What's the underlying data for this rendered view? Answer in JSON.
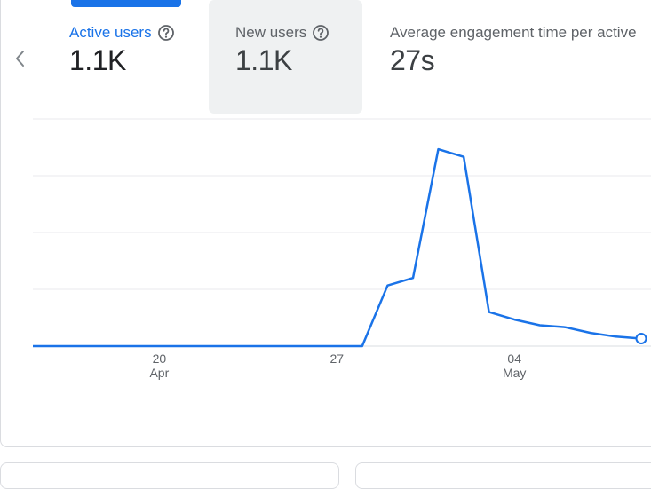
{
  "tabs": [
    {
      "label": "Active users",
      "value": "1.1K",
      "active": true
    },
    {
      "label": "New users",
      "value": "1.1K",
      "active": false
    },
    {
      "label": "Average engagement time per active",
      "value": "27s",
      "active": false
    }
  ],
  "icons": {
    "help": "help-circle-icon",
    "prev": "chevron-left-icon"
  },
  "colors": {
    "accent": "#1a73e8",
    "line": "#1a73e8",
    "grid": "#e8eaed"
  },
  "chart_data": {
    "type": "line",
    "x_tick_labels": [
      {
        "day": "20",
        "month": "Apr"
      },
      {
        "day": "27",
        "month": ""
      },
      {
        "day": "04",
        "month": "May"
      }
    ],
    "x": [
      "Apr 14",
      "Apr 15",
      "Apr 16",
      "Apr 17",
      "Apr 18",
      "Apr 19",
      "Apr 20",
      "Apr 21",
      "Apr 22",
      "Apr 23",
      "Apr 24",
      "Apr 25",
      "Apr 26",
      "Apr 27",
      "Apr 28",
      "Apr 29",
      "Apr 30",
      "May 1",
      "May 2",
      "May 3",
      "May 4",
      "May 5",
      "May 6",
      "May 7",
      "May 8",
      "May 9"
    ],
    "series": [
      {
        "name": "",
        "values": [
          0,
          0,
          0,
          0,
          0,
          0,
          0,
          0,
          0,
          0,
          0,
          0,
          0,
          0,
          0,
          16,
          18,
          52,
          50,
          9,
          7,
          5.5,
          5,
          3.5,
          2.5,
          2
        ]
      }
    ],
    "ylim": [
      0,
      60
    ],
    "grid": true,
    "legend": "none",
    "highlighted_point": "last"
  }
}
